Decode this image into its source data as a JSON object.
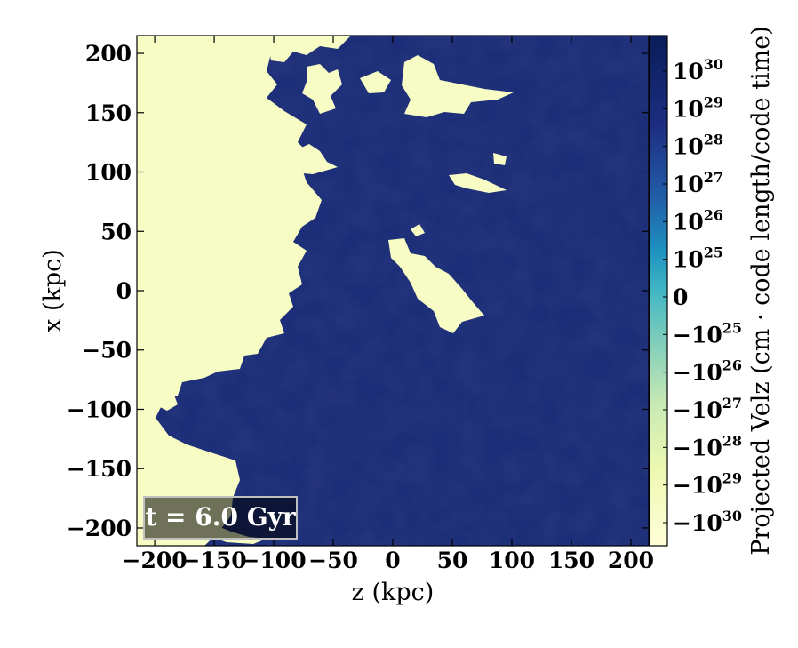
{
  "chart_data": {
    "type": "heatmap",
    "title": "",
    "xlabel": "z  (kpc)",
    "ylabel": "x  (kpc)",
    "xlim": [
      -215,
      215
    ],
    "ylim": [
      -215,
      215
    ],
    "xticks": [
      -200,
      -150,
      -100,
      -50,
      0,
      50,
      100,
      150,
      200
    ],
    "yticks": [
      -200,
      -150,
      -100,
      -50,
      0,
      50,
      100,
      150,
      200
    ],
    "xtick_labels": [
      "−200",
      "−150",
      "−100",
      "−50",
      "0",
      "50",
      "100",
      "150",
      "200"
    ],
    "ytick_labels": [
      "−200",
      "−150",
      "−100",
      "−50",
      "0",
      "50",
      "100",
      "150",
      "200"
    ],
    "colorbar": {
      "label": "Projected Velz  (cm · code length/code time)",
      "scale": "symlog",
      "colormap": "YlGnBu (reversed)",
      "ticks": [
        {
          "base": "10",
          "exp": "30",
          "value": 1e+30
        },
        {
          "base": "10",
          "exp": "29",
          "value": 1e+29
        },
        {
          "base": "10",
          "exp": "28",
          "value": 1e+28
        },
        {
          "base": "10",
          "exp": "27",
          "value": 1e+27
        },
        {
          "base": "10",
          "exp": "26",
          "value": 1e+26
        },
        {
          "base": "10",
          "exp": "25",
          "value": 1e+25
        },
        {
          "base": "0",
          "exp": "",
          "value": 0
        },
        {
          "base": "−10",
          "exp": "25",
          "value": -1e+25
        },
        {
          "base": "−10",
          "exp": "26",
          "value": -1e+26
        },
        {
          "base": "−10",
          "exp": "27",
          "value": -1e+27
        },
        {
          "base": "−10",
          "exp": "28",
          "value": -1e+28
        },
        {
          "base": "−10",
          "exp": "29",
          "value": -1e+29
        },
        {
          "base": "−10",
          "exp": "30",
          "value": -1e+30
        }
      ]
    },
    "annotation": "t = 6.0 Gyr",
    "colors": {
      "positive": "#1a2b78",
      "negative": "#f7fcc4",
      "zero": "#41b6c4"
    }
  }
}
